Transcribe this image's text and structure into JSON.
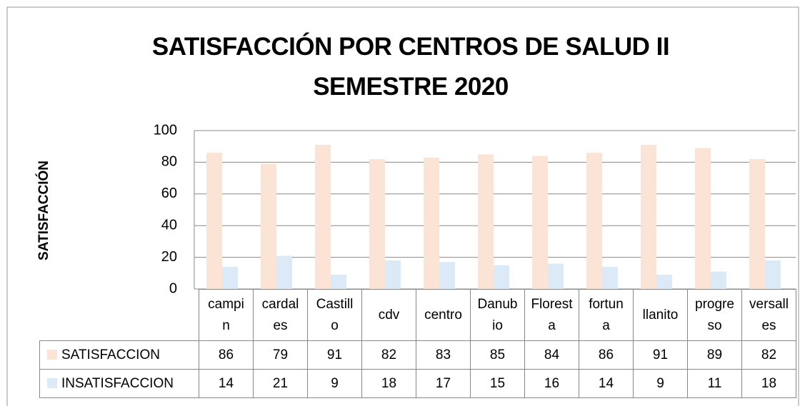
{
  "chart_data": {
    "type": "bar",
    "title": "SATISFACCIÓN POR CENTROS DE SALUD II SEMESTRE 2020",
    "y_label": "SATISFACCIÓN",
    "categories": [
      "campin",
      "cardales",
      "Castillo",
      "cdv",
      "centro",
      "Danubio",
      "Floresta",
      "fortuna",
      "llanito",
      "progreso",
      "versalles"
    ],
    "series": [
      {
        "name": "SATISFACCION",
        "color": "#fbe3d6",
        "values": [
          86,
          79,
          91,
          82,
          83,
          85,
          84,
          86,
          91,
          89,
          82
        ]
      },
      {
        "name": "INSATISFACCION",
        "color": "#dce9f6",
        "values": [
          14,
          21,
          9,
          18,
          17,
          15,
          16,
          14,
          9,
          11,
          18
        ]
      }
    ],
    "ylim": [
      0,
      100
    ],
    "yticks": [
      0,
      20,
      40,
      60,
      80,
      100
    ],
    "grid": true,
    "data_table": true
  }
}
